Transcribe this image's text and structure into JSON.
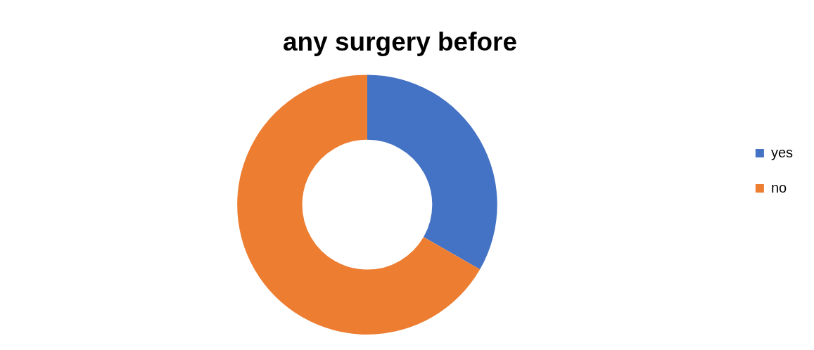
{
  "chart_data": {
    "type": "donut",
    "title": "any surgery before",
    "categories": [
      "yes",
      "no"
    ],
    "values": [
      33.3,
      66.7
    ],
    "colors": [
      "#4472c4",
      "#ed7d31"
    ],
    "legend": "right"
  }
}
